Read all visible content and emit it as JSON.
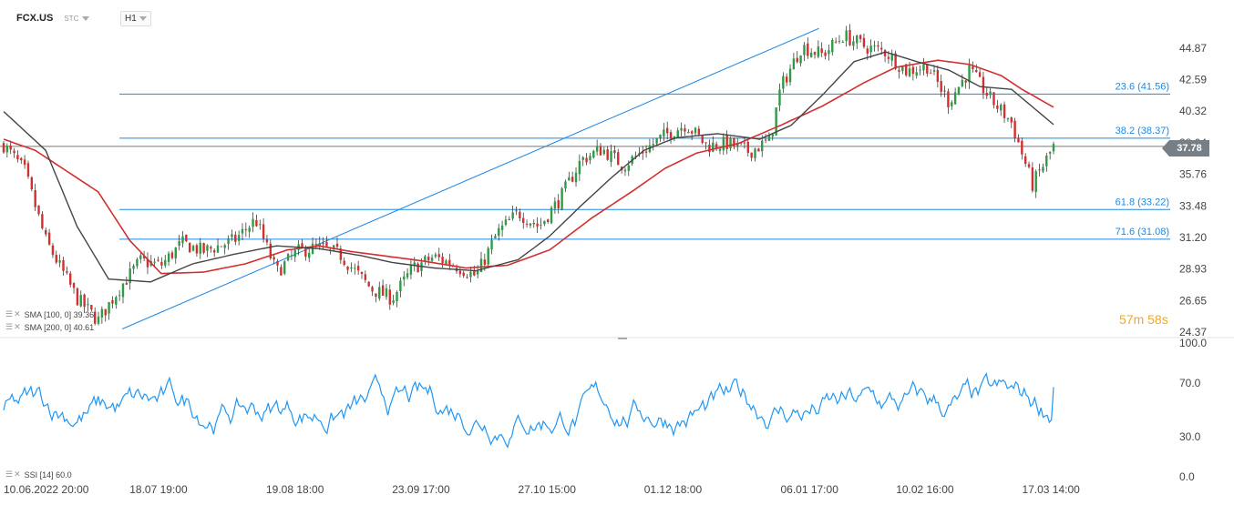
{
  "toolbar": {
    "symbol": "FCX.US",
    "display_type": "STC",
    "timeframe": "H1"
  },
  "indicators": {
    "sma100_label": "SMA [100, 0] 39.36",
    "sma200_label": "SMA [200, 0] 40.61",
    "ssi_label": "SSI [14] 60.0"
  },
  "timer": "57m 58s",
  "current_price": "37.78",
  "colors": {
    "candle_up": "#2e9b45",
    "candle_down": "#d32f2f",
    "sma100": "#444444",
    "sma200": "#d32f2f",
    "fib": "#1e88e5",
    "ssi": "#2196f3",
    "price_line": "#777777"
  },
  "chart_data": [
    {
      "type": "candlestick",
      "title": "FCX.US",
      "y_ticks": [
        "44.87",
        "42.59",
        "40.32",
        "38.04",
        "35.76",
        "33.48",
        "31.20",
        "28.93",
        "26.65",
        "24.37"
      ],
      "ylim": [
        24.37,
        46.5
      ],
      "x_ticks": [
        "10.06.2022  20:00",
        "18.07  19:00",
        "19.08  18:00",
        "23.09  17:00",
        "27.10  15:00",
        "01.12  18:00",
        "06.01  17:00",
        "10.02  16:00",
        "17.03  14:00"
      ],
      "fibonacci_levels": [
        {
          "label": "23.6 (41.56)",
          "value": 41.56
        },
        {
          "label": "38.2 (38.37)",
          "value": 38.37
        },
        {
          "label": "61.8 (33.22)",
          "value": 33.22
        },
        {
          "label": "71.6 (31.08)",
          "value": 31.08
        }
      ],
      "last_price": 37.78,
      "close_anchors": [
        [
          0,
          37.9
        ],
        [
          0.02,
          36.0
        ],
        [
          0.04,
          31.0
        ],
        [
          0.07,
          26.8
        ],
        [
          0.09,
          25.2
        ],
        [
          0.11,
          27.5
        ],
        [
          0.13,
          29.5
        ],
        [
          0.15,
          29.2
        ],
        [
          0.17,
          30.8
        ],
        [
          0.19,
          30.2
        ],
        [
          0.22,
          31.0
        ],
        [
          0.24,
          32.5
        ],
        [
          0.26,
          28.7
        ],
        [
          0.28,
          30.2
        ],
        [
          0.3,
          30.5
        ],
        [
          0.32,
          30.0
        ],
        [
          0.35,
          27.5
        ],
        [
          0.37,
          26.8
        ],
        [
          0.39,
          29.0
        ],
        [
          0.41,
          29.8
        ],
        [
          0.43,
          29.2
        ],
        [
          0.45,
          28.4
        ],
        [
          0.47,
          31.5
        ],
        [
          0.49,
          33.0
        ],
        [
          0.51,
          32.0
        ],
        [
          0.53,
          34.0
        ],
        [
          0.55,
          36.8
        ],
        [
          0.57,
          37.6
        ],
        [
          0.59,
          36.4
        ],
        [
          0.61,
          37.5
        ],
        [
          0.63,
          38.6
        ],
        [
          0.65,
          39.4
        ],
        [
          0.67,
          37.8
        ],
        [
          0.69,
          38.0
        ],
        [
          0.71,
          37.4
        ],
        [
          0.73,
          38.2
        ],
        [
          0.74,
          42.0
        ],
        [
          0.76,
          45.0
        ],
        [
          0.78,
          44.4
        ],
        [
          0.8,
          45.8
        ],
        [
          0.82,
          45.0
        ],
        [
          0.84,
          44.6
        ],
        [
          0.86,
          43.2
        ],
        [
          0.88,
          43.6
        ],
        [
          0.9,
          41.0
        ],
        [
          0.92,
          43.3
        ],
        [
          0.94,
          41.2
        ],
        [
          0.96,
          39.5
        ],
        [
          0.98,
          35.0
        ],
        [
          1.0,
          37.78
        ]
      ],
      "sma100_anchors": [
        [
          0,
          40.3
        ],
        [
          0.04,
          37.5
        ],
        [
          0.07,
          32.0
        ],
        [
          0.1,
          28.2
        ],
        [
          0.14,
          28.0
        ],
        [
          0.18,
          29.3
        ],
        [
          0.22,
          30.0
        ],
        [
          0.26,
          30.6
        ],
        [
          0.3,
          30.4
        ],
        [
          0.34,
          29.9
        ],
        [
          0.37,
          29.4
        ],
        [
          0.41,
          29.0
        ],
        [
          0.45,
          28.8
        ],
        [
          0.49,
          29.6
        ],
        [
          0.52,
          31.3
        ],
        [
          0.55,
          33.5
        ],
        [
          0.58,
          35.6
        ],
        [
          0.61,
          37.5
        ],
        [
          0.64,
          38.4
        ],
        [
          0.68,
          38.7
        ],
        [
          0.72,
          38.3
        ],
        [
          0.75,
          39.3
        ],
        [
          0.78,
          41.5
        ],
        [
          0.81,
          43.9
        ],
        [
          0.84,
          44.6
        ],
        [
          0.87,
          43.9
        ],
        [
          0.9,
          43.3
        ],
        [
          0.93,
          42.1
        ],
        [
          0.96,
          41.9
        ],
        [
          1.0,
          39.36
        ]
      ],
      "sma200_anchors": [
        [
          0,
          38.3
        ],
        [
          0.03,
          37.5
        ],
        [
          0.06,
          36.0
        ],
        [
          0.09,
          34.5
        ],
        [
          0.12,
          31.0
        ],
        [
          0.15,
          28.6
        ],
        [
          0.19,
          28.7
        ],
        [
          0.23,
          29.3
        ],
        [
          0.27,
          30.3
        ],
        [
          0.3,
          30.6
        ],
        [
          0.33,
          30.2
        ],
        [
          0.36,
          29.9
        ],
        [
          0.4,
          29.5
        ],
        [
          0.44,
          29.0
        ],
        [
          0.48,
          29.2
        ],
        [
          0.52,
          30.3
        ],
        [
          0.56,
          32.6
        ],
        [
          0.6,
          34.6
        ],
        [
          0.63,
          36.2
        ],
        [
          0.66,
          37.3
        ],
        [
          0.7,
          38.0
        ],
        [
          0.74,
          39.3
        ],
        [
          0.78,
          40.7
        ],
        [
          0.82,
          42.4
        ],
        [
          0.85,
          43.5
        ],
        [
          0.89,
          44.0
        ],
        [
          0.92,
          43.7
        ],
        [
          0.95,
          42.9
        ],
        [
          0.97,
          41.9
        ],
        [
          1.0,
          40.61
        ]
      ],
      "trendline": [
        [
          0,
          24.6
        ],
        [
          0.76,
          46.3
        ]
      ]
    },
    {
      "type": "line",
      "series": [
        {
          "name": "SSI [14]",
          "last": 60.0
        }
      ],
      "y_ticks": [
        "100.0",
        "70.0",
        "30.0",
        "0.0"
      ],
      "ylim": [
        0,
        100
      ]
    }
  ]
}
